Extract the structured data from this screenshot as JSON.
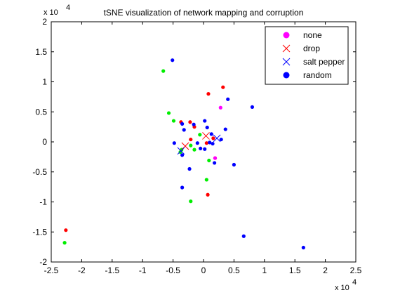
{
  "chart_data": {
    "type": "scatter",
    "title": "tSNE visualization of network mapping and corruption",
    "xlabel": "",
    "ylabel": "",
    "x_exponent_label": "x 10",
    "x_exponent_power": "4",
    "y_exponent_label": "x 10",
    "y_exponent_power": "4",
    "xlim": [
      -2.5,
      2.5
    ],
    "ylim": [
      -2,
      2
    ],
    "xticks": [
      -2.5,
      -2,
      -1.5,
      -1,
      -0.5,
      0,
      0.5,
      1,
      1.5,
      2,
      2.5
    ],
    "xtick_labels": [
      "-2.5",
      "-2",
      "-1.5",
      "-1",
      "-0.5",
      "0",
      "0.5",
      "1",
      "1.5",
      "2",
      "2.5"
    ],
    "yticks": [
      -2,
      -1.5,
      -1,
      -0.5,
      0,
      0.5,
      1,
      1.5,
      2
    ],
    "ytick_labels": [
      "-2",
      "-1.5",
      "-1",
      "-0.5",
      "0",
      "0.5",
      "1",
      "1.5",
      "2"
    ],
    "grid": false,
    "legend_position": "top-right",
    "legend": [
      {
        "label": "none",
        "marker": "circle",
        "color": "#ff00ff"
      },
      {
        "label": "drop",
        "marker": "x",
        "color": "#ff0000"
      },
      {
        "label": "salt pepper",
        "marker": "x",
        "color": "#0000ff"
      },
      {
        "label": "random",
        "marker": "circle",
        "color": "#0000ff"
      }
    ],
    "series": [
      {
        "name": "red points",
        "marker": "dot",
        "color": "#ff0000",
        "points": [
          [
            -2.26,
            -1.47
          ],
          [
            -0.37,
            0.33
          ],
          [
            -0.22,
            0.33
          ],
          [
            -0.15,
            0.25
          ],
          [
            -0.21,
            0.04
          ],
          [
            0.32,
            0.91
          ],
          [
            0.08,
            0.8
          ],
          [
            0.16,
            0.06
          ],
          [
            0.05,
            -0.02
          ],
          [
            0.07,
            -0.88
          ],
          [
            0.19,
            -0.27
          ]
        ]
      },
      {
        "name": "green points",
        "marker": "dot",
        "color": "#00ee00",
        "points": [
          [
            -2.28,
            -1.68
          ],
          [
            -0.66,
            1.18
          ],
          [
            -0.57,
            0.48
          ],
          [
            -0.49,
            0.35
          ],
          [
            -0.38,
            -0.17
          ],
          [
            -0.36,
            -0.13
          ],
          [
            -0.21,
            -0.06
          ],
          [
            -0.15,
            -0.13
          ],
          [
            -0.06,
            0.12
          ],
          [
            0.05,
            -0.63
          ],
          [
            0.09,
            -0.31
          ],
          [
            -0.21,
            -0.99
          ]
        ]
      },
      {
        "name": "magenta points",
        "marker": "dot",
        "color": "#ff00ff",
        "points": [
          [
            0.28,
            0.57
          ],
          [
            0.19,
            -0.27
          ]
        ]
      },
      {
        "name": "blue points",
        "marker": "dot",
        "color": "#0000ff",
        "points": [
          [
            -0.51,
            1.36
          ],
          [
            0.4,
            0.71
          ],
          [
            0.8,
            0.58
          ],
          [
            -0.35,
            0.3
          ],
          [
            -0.32,
            0.2
          ],
          [
            -0.16,
            0.29
          ],
          [
            0.02,
            0.35
          ],
          [
            0.06,
            0.24
          ],
          [
            0.36,
            0.21
          ],
          [
            0.13,
            0.13
          ],
          [
            -0.48,
            -0.02
          ],
          [
            -0.1,
            -0.02
          ],
          [
            -0.05,
            -0.11
          ],
          [
            0.02,
            -0.12
          ],
          [
            0.1,
            -0.01
          ],
          [
            0.15,
            -0.03
          ],
          [
            0.29,
            0.04
          ],
          [
            0.18,
            -0.35
          ],
          [
            -0.35,
            -0.22
          ],
          [
            -0.23,
            -0.45
          ],
          [
            -0.35,
            -0.76
          ],
          [
            0.5,
            -0.38
          ],
          [
            0.66,
            -1.57
          ],
          [
            1.64,
            -1.76
          ]
        ]
      },
      {
        "name": "drop",
        "marker": "x",
        "color": "#ff0000",
        "points": [
          [
            -0.3,
            -0.07
          ],
          [
            0.04,
            0.1
          ]
        ]
      },
      {
        "name": "salt pepper",
        "marker": "x",
        "color": "#0000ff",
        "points": [
          [
            -0.37,
            -0.15
          ],
          [
            0.22,
            0.06
          ]
        ]
      }
    ]
  }
}
